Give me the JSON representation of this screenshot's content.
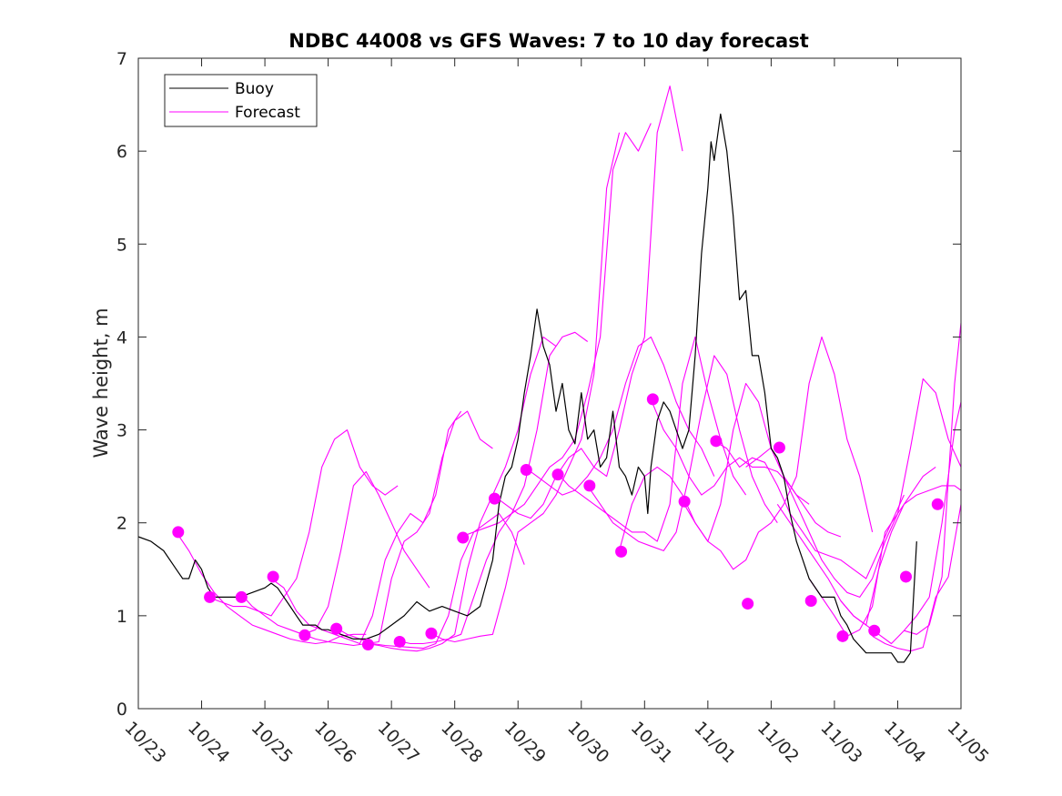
{
  "chart_data": {
    "type": "line",
    "title": "NDBC 44008 vs GFS Waves: 7 to 10 day forecast",
    "xlabel": "",
    "ylabel": "Wave height, m",
    "xlim": [
      0,
      13
    ],
    "ylim": [
      0,
      7
    ],
    "x_tick_labels": [
      "10/23",
      "10/24",
      "10/25",
      "10/26",
      "10/27",
      "10/28",
      "10/29",
      "10/30",
      "10/31",
      "11/01",
      "11/02",
      "11/03",
      "11/04",
      "11/05"
    ],
    "y_ticks": [
      0,
      1,
      2,
      3,
      4,
      5,
      6,
      7
    ],
    "legend": {
      "placement": "top-left",
      "entries": [
        "Buoy",
        "Forecast"
      ]
    },
    "colors": {
      "buoy": "#000000",
      "forecast": "#ff00ff",
      "axes": "#262626"
    },
    "series": [
      {
        "name": "Buoy",
        "x": [
          0.0,
          0.2,
          0.4,
          0.6,
          0.7,
          0.8,
          0.9,
          1.0,
          1.1,
          1.2,
          1.4,
          1.6,
          1.8,
          2.0,
          2.1,
          2.2,
          2.4,
          2.5,
          2.6,
          2.8,
          2.9,
          3.0,
          3.2,
          3.4,
          3.6,
          3.8,
          4.0,
          4.2,
          4.4,
          4.6,
          4.8,
          5.0,
          5.2,
          5.4,
          5.6,
          5.7,
          5.8,
          5.9,
          6.0,
          6.1,
          6.2,
          6.3,
          6.4,
          6.5,
          6.6,
          6.7,
          6.8,
          6.9,
          7.0,
          7.1,
          7.2,
          7.3,
          7.4,
          7.5,
          7.6,
          7.7,
          7.8,
          7.9,
          8.0,
          8.05,
          8.1,
          8.2,
          8.3,
          8.4,
          8.5,
          8.6,
          8.7,
          8.8,
          8.9,
          9.0,
          9.05,
          9.1,
          9.2,
          9.3,
          9.4,
          9.5,
          9.6,
          9.7,
          9.8,
          9.9,
          10.0,
          10.1,
          10.2,
          10.3,
          10.4,
          10.5,
          10.6,
          10.8,
          11.0,
          11.1,
          11.2,
          11.3,
          11.5,
          11.7,
          11.8,
          11.9,
          12.0,
          12.1,
          12.2,
          12.3
        ],
        "values": [
          1.85,
          1.8,
          1.7,
          1.5,
          1.4,
          1.4,
          1.6,
          1.5,
          1.3,
          1.2,
          1.2,
          1.2,
          1.25,
          1.3,
          1.35,
          1.3,
          1.1,
          1.0,
          0.9,
          0.9,
          0.85,
          0.85,
          0.8,
          0.75,
          0.75,
          0.8,
          0.9,
          1.0,
          1.15,
          1.05,
          1.1,
          1.05,
          1.0,
          1.1,
          1.6,
          2.2,
          2.5,
          2.6,
          2.9,
          3.4,
          3.8,
          4.3,
          3.9,
          3.7,
          3.2,
          3.5,
          3.0,
          2.85,
          3.4,
          2.9,
          3.0,
          2.6,
          2.7,
          3.2,
          2.6,
          2.5,
          2.3,
          2.6,
          2.5,
          2.1,
          2.6,
          3.1,
          3.3,
          3.2,
          3.0,
          2.8,
          3.0,
          3.8,
          4.9,
          5.6,
          6.1,
          5.9,
          6.4,
          6.0,
          5.3,
          4.4,
          4.5,
          3.8,
          3.8,
          3.4,
          2.8,
          2.7,
          2.5,
          2.1,
          1.8,
          1.6,
          1.4,
          1.2,
          1.2,
          1.0,
          0.9,
          0.75,
          0.6,
          0.6,
          0.6,
          0.6,
          0.5,
          0.5,
          0.6,
          1.8
        ]
      },
      {
        "name": "Forecast",
        "x": [
          0.6,
          0.8,
          1.0,
          1.2,
          1.4,
          1.6,
          1.8,
          2.0,
          2.2,
          2.4,
          2.6,
          2.8,
          3.0,
          3.2,
          3.4,
          3.6
        ],
        "values": [
          1.9,
          1.7,
          1.45,
          1.25,
          1.1,
          1.0,
          0.9,
          0.85,
          0.8,
          0.75,
          0.72,
          0.7,
          0.72,
          0.78,
          0.8,
          0.8
        ]
      },
      {
        "name": "Forecast",
        "x": [
          1.1,
          1.3,
          1.5,
          1.7,
          1.9,
          2.1,
          2.3,
          2.5,
          2.7,
          2.9,
          3.1,
          3.3,
          3.5,
          3.7,
          3.9,
          4.1
        ],
        "values": [
          1.2,
          1.15,
          1.1,
          1.1,
          1.05,
          1.0,
          1.2,
          1.4,
          1.9,
          2.6,
          2.9,
          3.0,
          2.6,
          2.4,
          2.3,
          2.4
        ]
      },
      {
        "name": "Forecast",
        "x": [
          1.6,
          1.8,
          2.0,
          2.2,
          2.4,
          2.6,
          2.8,
          3.0,
          3.2,
          3.4,
          3.6,
          3.8,
          4.0,
          4.2,
          4.4,
          4.6
        ],
        "values": [
          1.25,
          1.1,
          1.0,
          0.9,
          0.85,
          0.8,
          0.85,
          1.1,
          1.7,
          2.4,
          2.55,
          2.3,
          2.0,
          1.7,
          1.5,
          1.3
        ]
      },
      {
        "name": "Forecast",
        "x": [
          2.1,
          2.3,
          2.5,
          2.7,
          2.9,
          3.1,
          3.3,
          3.5,
          3.7,
          3.9,
          4.1,
          4.3,
          4.5,
          4.7,
          4.9,
          5.1
        ],
        "values": [
          1.4,
          1.3,
          1.05,
          0.9,
          0.85,
          0.8,
          0.75,
          0.7,
          1.0,
          1.6,
          1.9,
          2.1,
          2.0,
          2.3,
          3.0,
          3.2
        ]
      },
      {
        "name": "Forecast",
        "x": [
          2.6,
          2.8,
          3.0,
          3.2,
          3.4,
          3.6,
          3.8,
          4.0,
          4.2,
          4.4,
          4.6,
          4.8,
          5.0,
          5.2,
          5.4,
          5.6
        ],
        "values": [
          0.8,
          0.75,
          0.72,
          0.7,
          0.68,
          0.7,
          0.72,
          1.4,
          1.8,
          1.9,
          2.1,
          2.7,
          3.1,
          3.2,
          2.9,
          2.8
        ]
      },
      {
        "name": "Forecast",
        "x": [
          3.1,
          3.3,
          3.5,
          3.7,
          3.9,
          4.1,
          4.3,
          4.5,
          4.7,
          4.9,
          5.1,
          5.3,
          5.5,
          5.7,
          5.9,
          6.1
        ],
        "values": [
          0.88,
          0.8,
          0.75,
          0.7,
          0.68,
          0.67,
          0.66,
          0.65,
          0.7,
          1.0,
          1.6,
          1.9,
          2.0,
          2.1,
          1.9,
          1.55
        ]
      },
      {
        "name": "Forecast",
        "x": [
          3.6,
          3.8,
          4.0,
          4.2,
          4.4,
          4.6,
          4.8,
          5.0,
          5.2,
          5.4,
          5.6,
          5.8,
          6.0,
          6.2,
          6.4,
          6.6
        ],
        "values": [
          0.7,
          0.68,
          0.65,
          0.63,
          0.62,
          0.65,
          0.7,
          0.8,
          1.5,
          2.0,
          2.3,
          2.6,
          3.0,
          3.6,
          4.0,
          3.9
        ]
      },
      {
        "name": "Forecast",
        "x": [
          4.1,
          4.3,
          4.5,
          4.7,
          4.9,
          5.1,
          5.3,
          5.5,
          5.7,
          5.9,
          6.1,
          6.3,
          6.5,
          6.7,
          6.9,
          7.1
        ],
        "values": [
          0.73,
          0.7,
          0.7,
          0.72,
          0.75,
          0.8,
          1.2,
          1.6,
          1.9,
          2.1,
          2.4,
          3.0,
          3.8,
          4.0,
          4.05,
          3.95
        ]
      },
      {
        "name": "Forecast",
        "x": [
          4.6,
          4.8,
          5.0,
          5.2,
          5.4,
          5.6,
          5.8,
          6.0,
          6.2,
          6.4,
          6.6,
          6.8,
          7.0,
          7.2,
          7.4,
          7.6
        ],
        "values": [
          0.82,
          0.75,
          0.72,
          0.75,
          0.78,
          0.8,
          1.3,
          1.9,
          2.0,
          2.1,
          2.3,
          2.6,
          2.9,
          3.6,
          5.6,
          6.2
        ]
      },
      {
        "name": "Forecast",
        "x": [
          5.1,
          5.3,
          5.5,
          5.7,
          5.9,
          6.1,
          6.3,
          6.5,
          6.7,
          6.9,
          7.1,
          7.3,
          7.5,
          7.7,
          7.9,
          8.1
        ],
        "values": [
          1.85,
          1.9,
          1.95,
          2.0,
          2.1,
          2.2,
          2.4,
          2.6,
          2.7,
          2.9,
          3.4,
          4.0,
          5.8,
          6.2,
          6.0,
          6.3
        ]
      },
      {
        "name": "Forecast",
        "x": [
          5.6,
          5.8,
          6.0,
          6.2,
          6.4,
          6.6,
          6.8,
          7.0,
          7.2,
          7.4,
          7.6,
          7.8,
          8.0,
          8.2,
          8.4,
          8.6
        ],
        "values": [
          2.3,
          2.2,
          2.1,
          2.05,
          2.2,
          2.5,
          2.7,
          2.8,
          2.6,
          2.5,
          3.0,
          3.6,
          4.0,
          6.2,
          6.7,
          6.0
        ]
      },
      {
        "name": "Forecast",
        "x": [
          6.1,
          6.3,
          6.5,
          6.7,
          6.9,
          7.1,
          7.3,
          7.5,
          7.7,
          7.9,
          8.1,
          8.3,
          8.5,
          8.7,
          8.9,
          9.1
        ],
        "values": [
          2.6,
          2.5,
          2.4,
          2.3,
          2.35,
          2.5,
          2.7,
          3.0,
          3.5,
          3.9,
          4.0,
          3.7,
          3.3,
          3.0,
          2.8,
          2.5
        ]
      },
      {
        "name": "Forecast",
        "x": [
          6.6,
          6.8,
          7.0,
          7.2,
          7.4,
          7.6,
          7.8,
          8.0,
          8.2,
          8.4,
          8.6,
          8.8,
          9.0,
          9.2,
          9.4,
          9.6
        ],
        "values": [
          2.55,
          2.4,
          2.3,
          2.2,
          2.1,
          2.0,
          1.9,
          1.9,
          1.8,
          2.2,
          3.5,
          4.0,
          3.4,
          2.9,
          2.5,
          2.3
        ]
      },
      {
        "name": "Forecast",
        "x": [
          7.1,
          7.3,
          7.5,
          7.7,
          7.9,
          8.1,
          8.3,
          8.5,
          8.7,
          8.9,
          9.1,
          9.3,
          9.5,
          9.7,
          9.9,
          10.1
        ],
        "values": [
          2.4,
          2.2,
          2.0,
          1.9,
          1.8,
          1.75,
          1.7,
          1.9,
          2.5,
          3.2,
          3.8,
          3.6,
          3.0,
          2.5,
          2.2,
          2.0
        ]
      },
      {
        "name": "Forecast",
        "x": [
          7.6,
          7.8,
          8.0,
          8.2,
          8.4,
          8.6,
          8.8,
          9.0,
          9.2,
          9.4,
          9.6,
          9.8,
          10.0,
          10.2,
          10.4,
          10.6
        ],
        "values": [
          1.7,
          2.2,
          2.5,
          2.6,
          2.5,
          2.3,
          2.0,
          1.8,
          2.2,
          3.0,
          3.5,
          3.3,
          2.8,
          2.5,
          2.3,
          2.2
        ]
      },
      {
        "name": "Forecast",
        "x": [
          8.1,
          8.3,
          8.5,
          8.7,
          8.9,
          9.1,
          9.3,
          9.5,
          9.7,
          9.9,
          10.1,
          10.3,
          10.5,
          10.7,
          10.9,
          11.1
        ],
        "values": [
          3.33,
          3.0,
          2.8,
          2.5,
          2.3,
          2.4,
          2.6,
          2.7,
          2.6,
          2.6,
          2.55,
          2.4,
          2.2,
          2.0,
          1.9,
          1.85
        ]
      },
      {
        "name": "Forecast",
        "x": [
          8.6,
          8.8,
          9.0,
          9.2,
          9.4,
          9.6,
          9.8,
          10.0,
          10.2,
          10.4,
          10.6,
          10.8,
          11.0,
          11.2,
          11.4,
          11.6
        ],
        "values": [
          2.23,
          2.0,
          1.8,
          1.7,
          1.5,
          1.6,
          1.9,
          2.0,
          2.2,
          2.5,
          3.5,
          4.0,
          3.6,
          2.9,
          2.5,
          1.9
        ]
      },
      {
        "name": "Forecast",
        "x": [
          9.1,
          9.3,
          9.5,
          9.7,
          9.9,
          10.1,
          10.3,
          10.5,
          10.7,
          10.9,
          11.1,
          11.3,
          11.5,
          11.7,
          11.9,
          12.1
        ],
        "values": [
          2.88,
          2.8,
          2.6,
          2.7,
          2.65,
          2.4,
          2.1,
          1.9,
          1.7,
          1.65,
          1.6,
          1.5,
          1.4,
          1.7,
          2.0,
          2.3
        ]
      },
      {
        "name": "Forecast",
        "x": [
          9.6,
          9.8,
          10.0,
          10.2,
          10.4,
          10.6,
          10.8,
          11.0,
          11.2,
          11.4,
          11.6,
          11.8,
          12.0,
          12.2,
          12.4,
          12.6
        ],
        "values": [
          2.6,
          2.7,
          2.81,
          2.5,
          2.2,
          1.9,
          1.6,
          1.4,
          1.25,
          1.2,
          1.4,
          1.8,
          2.1,
          2.3,
          2.5,
          2.6
        ]
      },
      {
        "name": "Forecast",
        "x": [
          10.1,
          10.3,
          10.5,
          10.7,
          10.9,
          11.1,
          11.3,
          11.5,
          11.7,
          11.9,
          12.1,
          12.3,
          12.5,
          12.7,
          12.9,
          13.0
        ],
        "values": [
          2.2,
          2.0,
          1.8,
          1.6,
          1.4,
          1.16,
          1.0,
          0.9,
          1.5,
          1.9,
          2.2,
          2.3,
          2.35,
          2.4,
          2.4,
          2.35
        ]
      },
      {
        "name": "Forecast",
        "x": [
          10.6,
          10.8,
          11.0,
          11.2,
          11.4,
          11.6,
          11.8,
          12.0,
          12.2,
          12.4,
          12.6,
          12.8,
          13.0
        ],
        "values": [
          1.4,
          1.2,
          1.0,
          0.78,
          0.85,
          1.1,
          1.9,
          2.1,
          2.8,
          3.55,
          3.4,
          2.9,
          2.6
        ]
      },
      {
        "name": "Forecast",
        "x": [
          11.1,
          11.3,
          11.5,
          11.7,
          11.9,
          12.1,
          12.3,
          12.5,
          12.7,
          12.9,
          13.0
        ],
        "values": [
          1.16,
          1.0,
          0.9,
          0.8,
          0.7,
          0.84,
          1.0,
          1.2,
          2.0,
          3.0,
          3.3
        ]
      },
      {
        "name": "Forecast",
        "x": [
          11.6,
          11.8,
          12.0,
          12.2,
          12.4,
          12.6,
          12.8,
          13.0
        ],
        "values": [
          0.78,
          0.7,
          0.65,
          0.62,
          0.66,
          1.2,
          1.42,
          2.2
        ]
      },
      {
        "name": "Forecast",
        "x": [
          12.1,
          12.3,
          12.5,
          12.7,
          12.9,
          13.0
        ],
        "values": [
          0.84,
          0.8,
          0.9,
          1.42,
          3.5,
          4.15
        ]
      }
    ],
    "forecast_markers": {
      "x": [
        0.63,
        1.13,
        1.63,
        2.13,
        2.63,
        3.13,
        3.63,
        4.13,
        4.63,
        5.13,
        5.63,
        6.13,
        6.63,
        7.13,
        7.63,
        8.13,
        8.63,
        9.13,
        9.63,
        10.13,
        10.63,
        11.13,
        11.63,
        12.13,
        12.63
      ],
      "values": [
        1.9,
        1.2,
        1.2,
        1.42,
        0.79,
        0.86,
        0.69,
        0.72,
        0.81,
        1.84,
        2.26,
        2.57,
        2.52,
        2.4,
        1.69,
        3.33,
        2.23,
        2.88,
        1.13,
        2.81,
        1.16,
        0.78,
        0.84,
        1.42,
        2.2
      ]
    }
  }
}
